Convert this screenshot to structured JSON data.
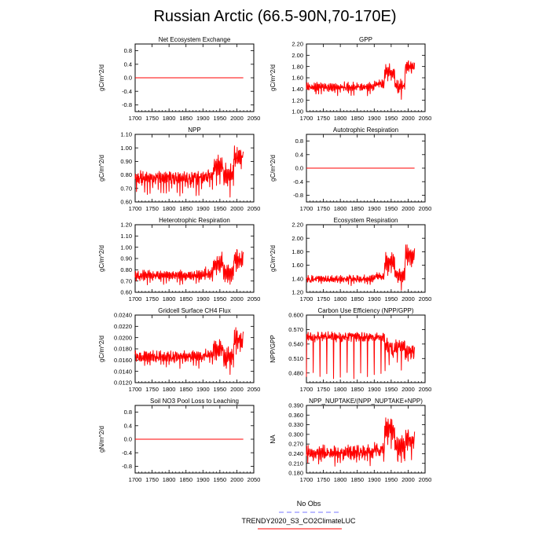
{
  "title": "Russian Arctic (66.5-90N,70-170E)",
  "colors": {
    "series": "#ff0000",
    "obs": "#7777ff",
    "axis": "#000000"
  },
  "legend": [
    {
      "label": "No Obs",
      "style": "dashed",
      "color": "#7777ff"
    },
    {
      "label": "TRENDY2020_S3_CO2ClimateLUC",
      "style": "solid",
      "color": "#ff0000"
    }
  ],
  "chart_data": [
    {
      "type": "line",
      "title": "Net Ecosystem Exchange",
      "ylabel": "gC/m^2/d",
      "xlim": [
        1700,
        2050
      ],
      "ylim": [
        -1,
        1
      ],
      "xticks": [
        1700,
        1750,
        1800,
        1850,
        1900,
        1950,
        2000,
        2050
      ],
      "xtick_labels": [
        "1700",
        "1750",
        "1800",
        "1850",
        "1900",
        "1950",
        "2000",
        "2050"
      ],
      "yticks": [
        -0.8,
        -0.4,
        0.0,
        0.4,
        0.8
      ],
      "ytick_labels": [
        "-0.8",
        "-0.4",
        "0.0",
        "0.4",
        "0.8"
      ],
      "series": {
        "name": "TRENDY2020_S3_CO2ClimateLUC",
        "start_year": 1700,
        "end_year": 2019,
        "segments": [
          {
            "from": 1700,
            "to": 2019,
            "base": 0.0,
            "amp": 0.0,
            "noise": 0.0,
            "low": 0.0,
            "period": 8
          }
        ]
      }
    },
    {
      "type": "line",
      "title": "GPP",
      "ylabel": "gC/m^2/d",
      "xlim": [
        1700,
        2050
      ],
      "ylim": [
        1.0,
        2.2
      ],
      "xticks": [
        1700,
        1750,
        1800,
        1850,
        1900,
        1950,
        2000,
        2050
      ],
      "xtick_labels": [
        "1700",
        "1750",
        "1800",
        "1850",
        "1900",
        "1950",
        "2000",
        "2050"
      ],
      "yticks": [
        1.0,
        1.2,
        1.4,
        1.6,
        1.8,
        2.0,
        2.2
      ],
      "ytick_labels": [
        "1.00",
        "1.20",
        "1.40",
        "1.60",
        "1.80",
        "2.00",
        "2.20"
      ],
      "series": {
        "name": "TRENDY2020_S3_CO2ClimateLUC",
        "start_year": 1700,
        "end_year": 2019,
        "segments": [
          {
            "from": 1700,
            "to": 1900,
            "base": 1.44,
            "amp": 0.05,
            "noise": 0.04,
            "low": 0.08,
            "period": 8
          },
          {
            "from": 1901,
            "to": 1930,
            "base": 1.5,
            "amp": 0.05,
            "noise": 0.04,
            "low": 0.06,
            "period": 8
          },
          {
            "from": 1931,
            "to": 1960,
            "base": 1.7,
            "amp": 0.1,
            "noise": 0.06,
            "low": 0.1,
            "period": 10
          },
          {
            "from": 1961,
            "to": 1990,
            "base": 1.45,
            "amp": 0.08,
            "noise": 0.06,
            "low": 0.12,
            "period": 10
          },
          {
            "from": 1991,
            "to": 2019,
            "base": 1.8,
            "amp": 0.08,
            "noise": 0.06,
            "low": 0.05,
            "period": 6
          }
        ]
      }
    },
    {
      "type": "line",
      "title": "NPP",
      "ylabel": "gC/m^2/d",
      "xlim": [
        1700,
        2050
      ],
      "ylim": [
        0.6,
        1.1
      ],
      "xticks": [
        1700,
        1750,
        1800,
        1850,
        1900,
        1950,
        2000,
        2050
      ],
      "xtick_labels": [
        "1700",
        "1750",
        "1800",
        "1850",
        "1900",
        "1950",
        "2000",
        "2050"
      ],
      "yticks": [
        0.6,
        0.7,
        0.8,
        0.9,
        1.0,
        1.1
      ],
      "ytick_labels": [
        "0.60",
        "0.70",
        "0.80",
        "0.90",
        "1.00",
        "1.10"
      ],
      "series": {
        "name": "TRENDY2020_S3_CO2ClimateLUC",
        "start_year": 1700,
        "end_year": 2019,
        "segments": [
          {
            "from": 1700,
            "to": 1900,
            "base": 0.78,
            "amp": 0.03,
            "noise": 0.025,
            "low": 0.09,
            "period": 8
          },
          {
            "from": 1901,
            "to": 1930,
            "base": 0.8,
            "amp": 0.03,
            "noise": 0.03,
            "low": 0.07,
            "period": 8
          },
          {
            "from": 1931,
            "to": 1960,
            "base": 0.86,
            "amp": 0.05,
            "noise": 0.04,
            "low": 0.08,
            "period": 10
          },
          {
            "from": 1961,
            "to": 1990,
            "base": 0.8,
            "amp": 0.06,
            "noise": 0.04,
            "low": 0.1,
            "period": 10
          },
          {
            "from": 1991,
            "to": 2019,
            "base": 0.93,
            "amp": 0.05,
            "noise": 0.05,
            "low": 0.05,
            "period": 6
          }
        ]
      }
    },
    {
      "type": "line",
      "title": "Autotrophic Respiration",
      "ylabel": "gC/m^2/d",
      "xlim": [
        1700,
        2050
      ],
      "ylim": [
        -1,
        1
      ],
      "xticks": [
        1700,
        1750,
        1800,
        1850,
        1900,
        1950,
        2000,
        2050
      ],
      "xtick_labels": [
        "1700",
        "1750",
        "1800",
        "1850",
        "1900",
        "1950",
        "2000",
        "2050"
      ],
      "yticks": [
        -0.8,
        -0.4,
        0.0,
        0.4,
        0.8
      ],
      "ytick_labels": [
        "-0.8",
        "-0.4",
        "0.0",
        "0.4",
        "0.8"
      ],
      "series": {
        "name": "TRENDY2020_S3_CO2ClimateLUC",
        "start_year": 1700,
        "end_year": 2019,
        "segments": [
          {
            "from": 1700,
            "to": 2019,
            "base": 0.0,
            "amp": 0.0,
            "noise": 0.0,
            "low": 0.0,
            "period": 8
          }
        ]
      }
    },
    {
      "type": "line",
      "title": "Heterotrophic Respiration",
      "ylabel": "gC/m^2/d",
      "xlim": [
        1700,
        2050
      ],
      "ylim": [
        0.6,
        1.2
      ],
      "xticks": [
        1700,
        1750,
        1800,
        1850,
        1900,
        1950,
        2000,
        2050
      ],
      "xtick_labels": [
        "1700",
        "1750",
        "1800",
        "1850",
        "1900",
        "1950",
        "2000",
        "2050"
      ],
      "yticks": [
        0.6,
        0.7,
        0.8,
        0.9,
        1.0,
        1.1,
        1.2
      ],
      "ytick_labels": [
        "0.60",
        "0.70",
        "0.80",
        "0.90",
        "1.00",
        "1.10",
        "1.20"
      ],
      "series": {
        "name": "TRENDY2020_S3_CO2ClimateLUC",
        "start_year": 1700,
        "end_year": 2019,
        "segments": [
          {
            "from": 1700,
            "to": 1900,
            "base": 0.75,
            "amp": 0.03,
            "noise": 0.02,
            "low": 0.04,
            "period": 8
          },
          {
            "from": 1901,
            "to": 1930,
            "base": 0.77,
            "amp": 0.03,
            "noise": 0.03,
            "low": 0.04,
            "period": 8
          },
          {
            "from": 1931,
            "to": 1960,
            "base": 0.86,
            "amp": 0.06,
            "noise": 0.04,
            "low": 0.06,
            "period": 10
          },
          {
            "from": 1961,
            "to": 1990,
            "base": 0.78,
            "amp": 0.06,
            "noise": 0.04,
            "low": 0.08,
            "period": 10
          },
          {
            "from": 1991,
            "to": 2019,
            "base": 0.9,
            "amp": 0.06,
            "noise": 0.05,
            "low": 0.04,
            "period": 6
          }
        ]
      }
    },
    {
      "type": "line",
      "title": "Ecosystem Respiration",
      "ylabel": "gC/m^2/d",
      "xlim": [
        1700,
        2050
      ],
      "ylim": [
        1.2,
        2.2
      ],
      "xticks": [
        1700,
        1750,
        1800,
        1850,
        1900,
        1950,
        2000,
        2050
      ],
      "xtick_labels": [
        "1700",
        "1750",
        "1800",
        "1850",
        "1900",
        "1950",
        "2000",
        "2050"
      ],
      "yticks": [
        1.2,
        1.4,
        1.6,
        1.8,
        2.0,
        2.2
      ],
      "ytick_labels": [
        "1.20",
        "1.40",
        "1.60",
        "1.80",
        "2.00",
        "2.20"
      ],
      "series": {
        "name": "TRENDY2020_S3_CO2ClimateLUC",
        "start_year": 1700,
        "end_year": 2019,
        "segments": [
          {
            "from": 1700,
            "to": 1900,
            "base": 1.4,
            "amp": 0.03,
            "noise": 0.03,
            "low": 0.05,
            "period": 8
          },
          {
            "from": 1901,
            "to": 1930,
            "base": 1.44,
            "amp": 0.03,
            "noise": 0.03,
            "low": 0.05,
            "period": 8
          },
          {
            "from": 1931,
            "to": 1960,
            "base": 1.65,
            "amp": 0.1,
            "noise": 0.06,
            "low": 0.08,
            "period": 10
          },
          {
            "from": 1961,
            "to": 1990,
            "base": 1.45,
            "amp": 0.08,
            "noise": 0.05,
            "low": 0.1,
            "period": 10
          },
          {
            "from": 1991,
            "to": 2019,
            "base": 1.75,
            "amp": 0.1,
            "noise": 0.06,
            "low": 0.06,
            "period": 6
          }
        ]
      }
    },
    {
      "type": "line",
      "title": "Gridcell Surface CH4 Flux",
      "ylabel": "gC/m^2/d",
      "xlim": [
        1700,
        2050
      ],
      "ylim": [
        0.012,
        0.024
      ],
      "xticks": [
        1700,
        1750,
        1800,
        1850,
        1900,
        1950,
        2000,
        2050
      ],
      "xtick_labels": [
        "1700",
        "1750",
        "1800",
        "1850",
        "1900",
        "1950",
        "2000",
        "2050"
      ],
      "yticks": [
        0.012,
        0.014,
        0.016,
        0.018,
        0.02,
        0.022,
        0.024
      ],
      "ytick_labels": [
        "0.0120",
        "0.0140",
        "0.0160",
        "0.0180",
        "0.0200",
        "0.0220",
        "0.0240"
      ],
      "series": {
        "name": "TRENDY2020_S3_CO2ClimateLUC",
        "start_year": 1700,
        "end_year": 2019,
        "segments": [
          {
            "from": 1700,
            "to": 1900,
            "base": 0.0167,
            "amp": 0.0006,
            "noise": 0.0005,
            "low": 0.0012,
            "period": 8
          },
          {
            "from": 1901,
            "to": 1930,
            "base": 0.017,
            "amp": 0.0006,
            "noise": 0.0006,
            "low": 0.0012,
            "period": 8
          },
          {
            "from": 1931,
            "to": 1960,
            "base": 0.018,
            "amp": 0.0012,
            "noise": 0.001,
            "low": 0.0015,
            "period": 10
          },
          {
            "from": 1961,
            "to": 1990,
            "base": 0.0165,
            "amp": 0.0012,
            "noise": 0.001,
            "low": 0.0015,
            "period": 10
          },
          {
            "from": 1991,
            "to": 2019,
            "base": 0.0195,
            "amp": 0.0015,
            "noise": 0.0012,
            "low": 0.0012,
            "period": 6
          }
        ]
      }
    },
    {
      "type": "line",
      "title": "Carbon Use Efficiency (NPP/GPP)",
      "ylabel": "NPP/GPP",
      "xlim": [
        1700,
        2050
      ],
      "ylim": [
        0.46,
        0.6
      ],
      "xticks": [
        1700,
        1750,
        1800,
        1850,
        1900,
        1950,
        2000,
        2050
      ],
      "xtick_labels": [
        "1700",
        "1750",
        "1800",
        "1850",
        "1900",
        "1950",
        "2000",
        "2050"
      ],
      "yticks": [
        0.48,
        0.51,
        0.54,
        0.57,
        0.6
      ],
      "ytick_labels": [
        "0.480",
        "0.510",
        "0.540",
        "0.570",
        "0.600"
      ],
      "series": {
        "name": "TRENDY2020_S3_CO2ClimateLUC",
        "start_year": 1700,
        "end_year": 2019,
        "segments": [
          {
            "from": 1700,
            "to": 1930,
            "base": 0.555,
            "amp": 0.005,
            "noise": 0.006,
            "low": 0.08,
            "period": 20
          },
          {
            "from": 1931,
            "to": 1990,
            "base": 0.535,
            "amp": 0.01,
            "noise": 0.01,
            "low": 0.04,
            "period": 12
          },
          {
            "from": 1991,
            "to": 2019,
            "base": 0.525,
            "amp": 0.008,
            "noise": 0.008,
            "low": 0.02,
            "period": 8
          }
        ]
      }
    },
    {
      "type": "line",
      "title": "Soil NO3 Pool Loss to Leaching",
      "ylabel": "gN/m^2/d",
      "xlim": [
        1700,
        2050
      ],
      "ylim": [
        -1,
        1
      ],
      "xticks": [
        1700,
        1750,
        1800,
        1850,
        1900,
        1950,
        2000,
        2050
      ],
      "xtick_labels": [
        "1700",
        "1750",
        "1800",
        "1850",
        "1900",
        "1950",
        "2000",
        "2050"
      ],
      "yticks": [
        -0.8,
        -0.4,
        0.0,
        0.4,
        0.8
      ],
      "ytick_labels": [
        "-0.8",
        "-0.4",
        "0.0",
        "0.4",
        "0.8"
      ],
      "series": {
        "name": "TRENDY2020_S3_CO2ClimateLUC",
        "start_year": 1700,
        "end_year": 2019,
        "segments": [
          {
            "from": 1700,
            "to": 2019,
            "base": 0.0,
            "amp": 0.0,
            "noise": 0.0,
            "low": 0.0,
            "period": 8
          }
        ]
      }
    },
    {
      "type": "line",
      "title": "NPP_NUPTAKE/(NPP_NUPTAKE+NPP)",
      "ylabel": "NA",
      "xlim": [
        1700,
        2050
      ],
      "ylim": [
        0.18,
        0.39
      ],
      "xticks": [
        1700,
        1750,
        1800,
        1850,
        1900,
        1950,
        2000,
        2050
      ],
      "xtick_labels": [
        "1700",
        "1750",
        "1800",
        "1850",
        "1900",
        "1950",
        "2000",
        "2050"
      ],
      "yticks": [
        0.18,
        0.21,
        0.24,
        0.27,
        0.3,
        0.33,
        0.36,
        0.39
      ],
      "ytick_labels": [
        "0.180",
        "0.210",
        "0.240",
        "0.270",
        "0.300",
        "0.330",
        "0.360",
        "0.390"
      ],
      "series": {
        "name": "TRENDY2020_S3_CO2ClimateLUC",
        "start_year": 1700,
        "end_year": 2019,
        "segments": [
          {
            "from": 1700,
            "to": 1900,
            "base": 0.245,
            "amp": 0.012,
            "noise": 0.012,
            "low": 0.025,
            "period": 8
          },
          {
            "from": 1901,
            "to": 1930,
            "base": 0.255,
            "amp": 0.012,
            "noise": 0.012,
            "low": 0.02,
            "period": 8
          },
          {
            "from": 1931,
            "to": 1960,
            "base": 0.315,
            "amp": 0.025,
            "noise": 0.015,
            "low": 0.03,
            "period": 10
          },
          {
            "from": 1961,
            "to": 1990,
            "base": 0.26,
            "amp": 0.025,
            "noise": 0.018,
            "low": 0.04,
            "period": 10
          },
          {
            "from": 1991,
            "to": 2019,
            "base": 0.285,
            "amp": 0.02,
            "noise": 0.018,
            "low": 0.03,
            "period": 6
          }
        ]
      }
    }
  ]
}
